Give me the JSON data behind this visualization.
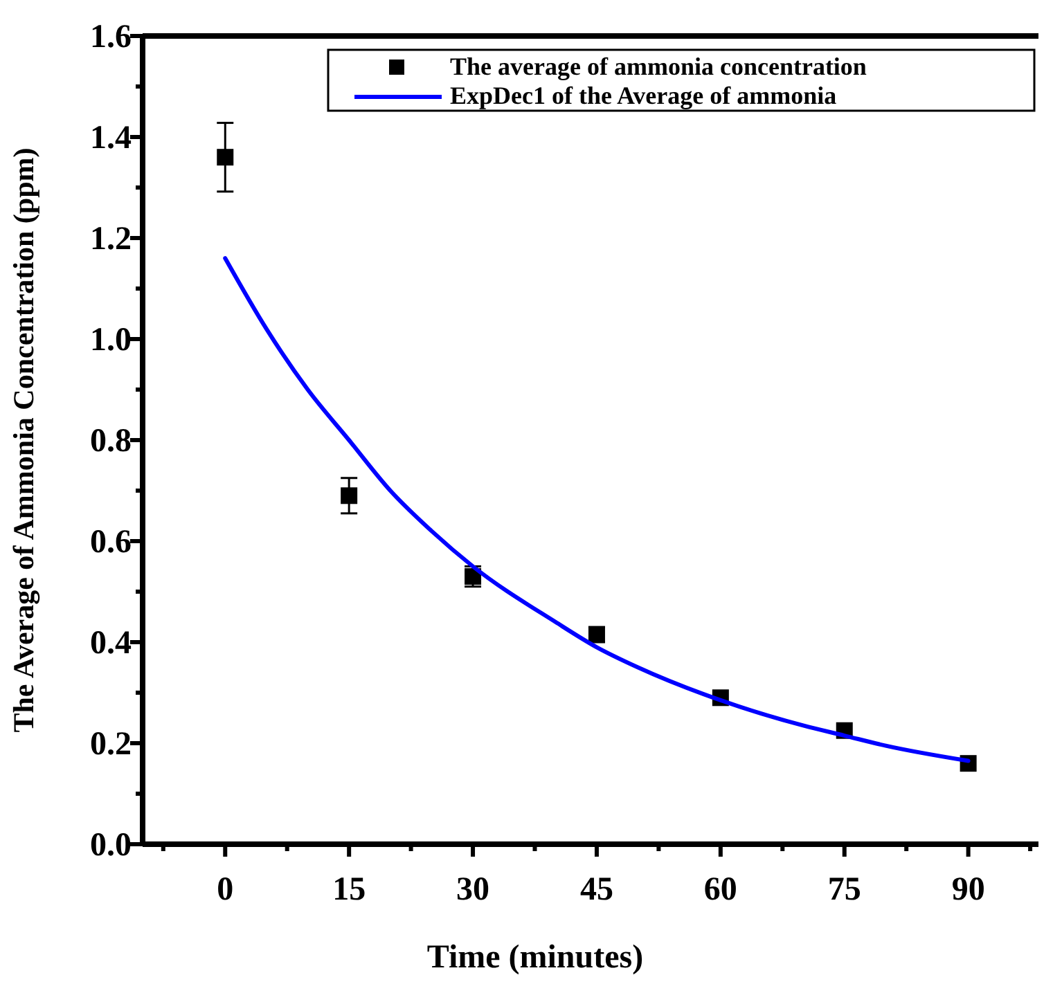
{
  "chart_data": {
    "type": "scatter",
    "xlabel": "Time (minutes)",
    "ylabel": "The Average of Ammonia Concentration (ppm)",
    "xlim": [
      -10,
      98.5
    ],
    "ylim": [
      0,
      1.6
    ],
    "xticks": [
      {
        "value": -7.5,
        "label": null
      },
      0,
      {
        "value": 7.5,
        "label": null
      },
      15,
      {
        "value": 22.5,
        "label": null
      },
      30,
      {
        "value": 37.5,
        "label": null
      },
      45,
      {
        "value": 52.5,
        "label": null
      },
      60,
      {
        "value": 67.5,
        "label": null
      },
      75,
      {
        "value": 82.5,
        "label": null
      },
      90,
      {
        "value": 97.5,
        "label": null
      }
    ],
    "yticks": [
      {
        "value": 0,
        "label": "0.0"
      },
      {
        "value": 0.1,
        "label": null
      },
      0.2,
      {
        "value": 0.3,
        "label": null
      },
      0.4,
      {
        "value": 0.5,
        "label": null
      },
      0.6,
      {
        "value": 0.7,
        "label": null
      },
      0.8,
      {
        "value": 0.9,
        "label": null
      },
      {
        "value": 1.0,
        "label": "1.0"
      },
      {
        "value": 1.1,
        "label": null
      },
      1.2,
      {
        "value": 1.3,
        "label": null
      },
      1.4,
      {
        "value": 1.5,
        "label": null
      },
      1.6
    ],
    "x": [
      0,
      15,
      30,
      45,
      60,
      75,
      90
    ],
    "series": [
      {
        "name": "The average of ammonia concentration",
        "color": "#000000",
        "marker": "square",
        "values": [
          1.36,
          0.69,
          0.53,
          0.415,
          0.29,
          0.225,
          0.16
        ],
        "errors": [
          0.068,
          0.035,
          0.02,
          0.015,
          null,
          null,
          null
        ]
      },
      {
        "name": "ExpDec1 of the Average of ammonia",
        "type": "line",
        "color": "#0000ff",
        "marker": "none",
        "line_style": "solid",
        "x": [
          0,
          5,
          10,
          15,
          20,
          25,
          30,
          40,
          45,
          50,
          60,
          70,
          75,
          80,
          90
        ],
        "values": [
          1.16,
          1.02,
          0.9,
          0.8,
          0.7,
          0.62,
          0.55,
          0.44,
          0.39,
          0.35,
          0.285,
          0.235,
          0.215,
          0.195,
          0.165
        ]
      }
    ],
    "legend": "top right",
    "grid": false
  }
}
